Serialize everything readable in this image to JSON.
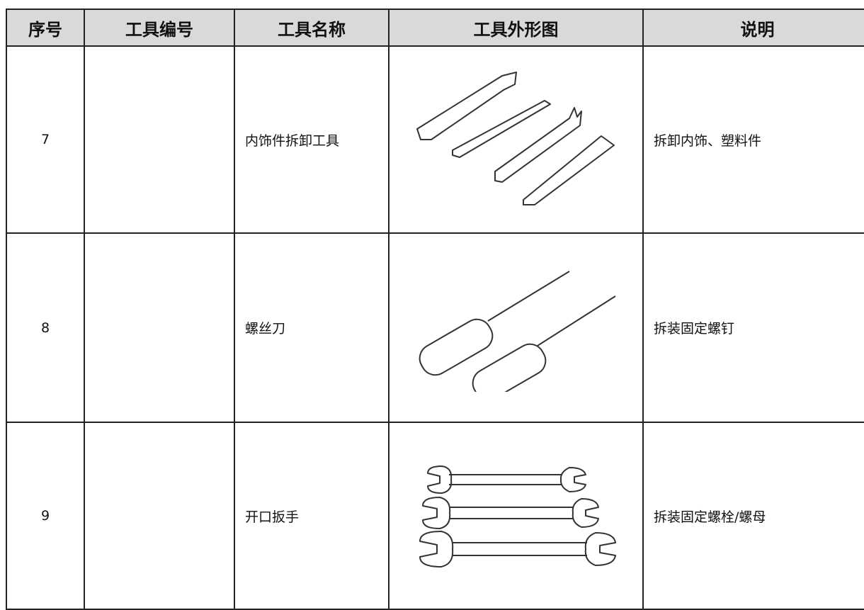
{
  "table": {
    "headers": [
      "序号",
      "工具编号",
      "工具名称",
      "工具外形图",
      "说明"
    ],
    "rows": [
      {
        "index": "7",
        "name": "内饰件拆卸工具",
        "description": "拆卸内饰、塑料件"
      },
      {
        "index": "8",
        "name": "螺丝刀",
        "description": "拆装固定螺钉"
      },
      {
        "index": "9",
        "name": "开口扳手",
        "description": "拆装固定螺栓/螺母"
      }
    ]
  }
}
